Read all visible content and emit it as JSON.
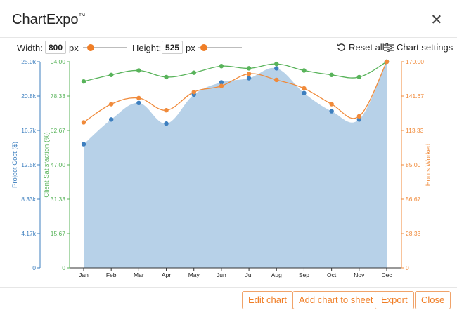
{
  "app": {
    "title": "ChartExpo",
    "trademark": "™"
  },
  "toolbar": {
    "width_label": "Width:",
    "width_value": "800",
    "width_unit": "px",
    "height_label": "Height:",
    "height_value": "525",
    "height_unit": "px",
    "reset_label": "Reset all",
    "settings_label": "Chart settings",
    "reset_icon": "reset-icon",
    "settings_icon": "sliders-icon"
  },
  "buttons": {
    "edit": "Edit chart",
    "add": "Add chart to sheet",
    "export": "Export",
    "close": "Close"
  },
  "colors": {
    "cost": "#3d7fbf",
    "cost_fill": "#b7d1e8",
    "satisfaction": "#58b35a",
    "hours": "#f08a3a",
    "accent": "#f07e26"
  },
  "chart_data": {
    "type": "line",
    "categories": [
      "Jan",
      "Feb",
      "Mar",
      "Apr",
      "May",
      "Jun",
      "Jul",
      "Aug",
      "Sep",
      "Oct",
      "Nov",
      "Dec"
    ],
    "axes": {
      "cost": {
        "label": "Project Cost ($)",
        "ticks": [
          "0",
          "4.17k",
          "8.33k",
          "12.5k",
          "16.7k",
          "20.8k",
          "25.0k"
        ],
        "range": [
          0,
          25000
        ]
      },
      "satisfaction": {
        "label": "Client Satisfaction (%)",
        "ticks": [
          "0",
          "15.67",
          "31.33",
          "47.00",
          "62.67",
          "78.33",
          "94.00"
        ],
        "range": [
          0,
          94
        ]
      },
      "hours": {
        "label": "Hours Worked",
        "ticks": [
          "0",
          "28.33",
          "56.67",
          "85.00",
          "113.33",
          "141.67",
          "170.00"
        ],
        "range": [
          0,
          170
        ]
      }
    },
    "series": [
      {
        "name": "Project Cost ($)",
        "axis": "cost",
        "style": "area",
        "values": [
          15000,
          18000,
          20000,
          17500,
          21000,
          22500,
          23000,
          24200,
          21200,
          19000,
          18000,
          25000
        ]
      },
      {
        "name": "Client Satisfaction (%)",
        "axis": "satisfaction",
        "style": "line",
        "values": [
          85,
          88,
          90,
          87,
          89,
          92,
          91,
          93,
          90,
          88,
          87,
          94
        ]
      },
      {
        "name": "Hours Worked",
        "axis": "hours",
        "style": "line",
        "values": [
          120,
          135,
          140,
          130,
          145,
          150,
          160,
          155,
          148,
          135,
          125,
          170
        ]
      }
    ],
    "grid": false
  }
}
